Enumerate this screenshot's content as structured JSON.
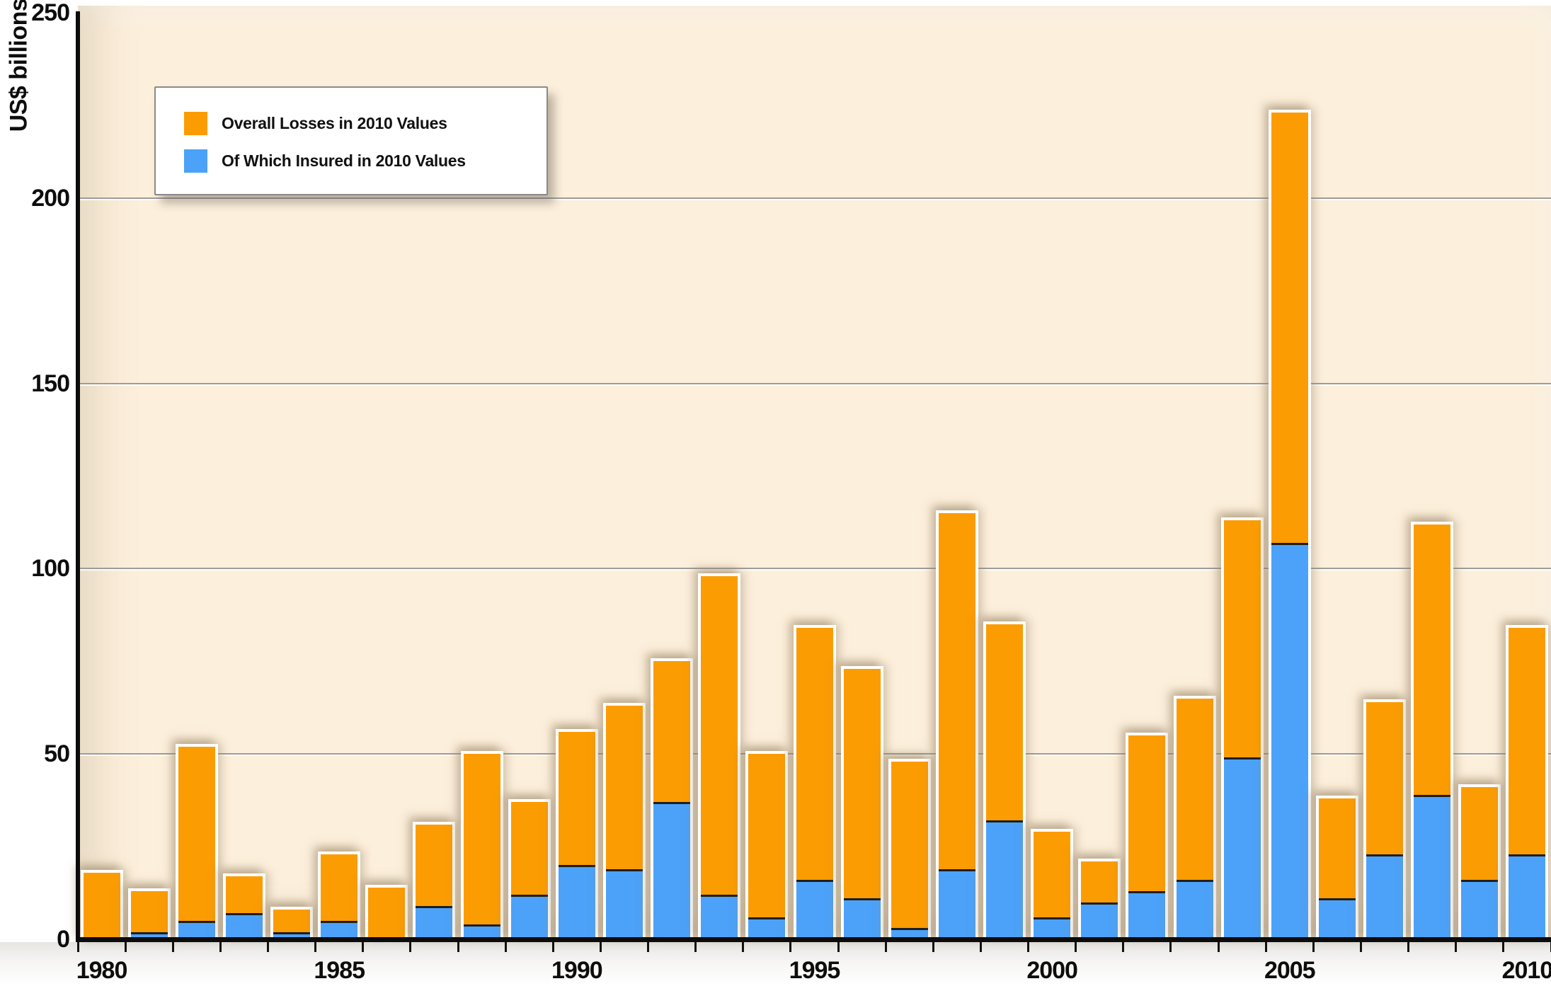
{
  "chart_data": {
    "type": "bar",
    "title": "",
    "ylabel": "US$ billions",
    "ylim": [
      0,
      250
    ],
    "yticks": [
      0,
      50,
      100,
      150,
      200,
      250
    ],
    "xtick_labels": [
      "1980",
      "1985",
      "1990",
      "1995",
      "2000",
      "2005",
      "2010"
    ],
    "grid": true,
    "legend_position": "top-left",
    "categories": [
      1980,
      1981,
      1982,
      1983,
      1984,
      1985,
      1986,
      1987,
      1988,
      1989,
      1990,
      1991,
      1992,
      1993,
      1994,
      1995,
      1996,
      1997,
      1998,
      1999,
      2000,
      2001,
      2002,
      2003,
      2004,
      2005,
      2006,
      2007,
      2008,
      2009,
      2010
    ],
    "series": [
      {
        "name": "Overall Losses in 2010 Values",
        "color": "#fc9c03",
        "values": [
          18,
          13,
          52,
          17,
          8,
          23,
          14,
          31,
          50,
          37,
          56,
          63,
          75,
          98,
          50,
          84,
          73,
          48,
          115,
          85,
          29,
          21,
          55,
          65,
          113,
          223,
          38,
          64,
          112,
          41,
          84
        ]
      },
      {
        "name": "Of Which Insured in 2010 Values",
        "color": "#4ca2f8",
        "values": [
          1,
          2,
          5,
          7,
          2,
          5,
          1,
          9,
          4,
          12,
          20,
          19,
          37,
          12,
          6,
          16,
          11,
          3,
          19,
          32,
          6,
          10,
          13,
          16,
          49,
          107,
          11,
          23,
          39,
          16,
          23
        ]
      }
    ]
  },
  "colors": {
    "plot_background": "#fcefdb",
    "page_background": "#ffffff",
    "gridline": "#9c9c9c",
    "axis": "#0c0c0c",
    "bar_border": "#ffffff",
    "insured_divider": "#1e1e1e",
    "text": "#0d0d0d"
  }
}
